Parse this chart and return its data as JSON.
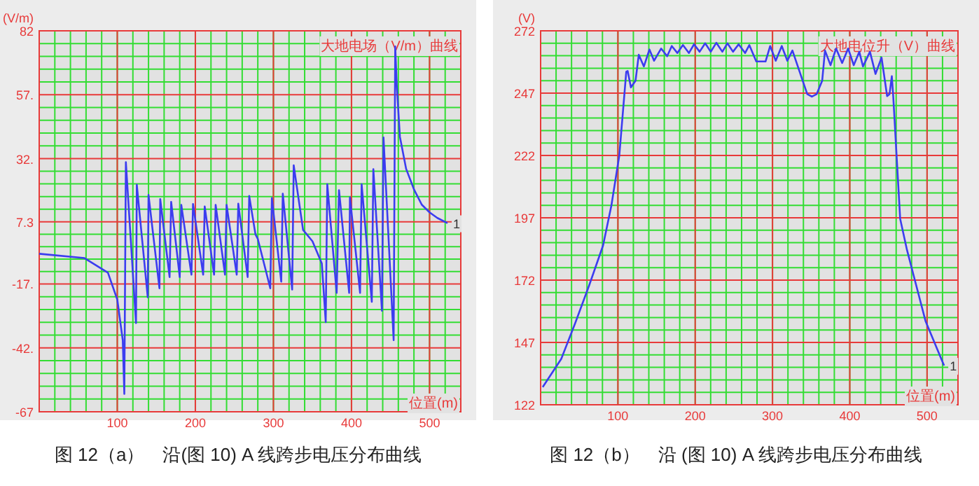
{
  "chart_data": [
    {
      "type": "line",
      "title": "大地电场（V/m）曲线",
      "xlabel": "位置(m)",
      "ylabel": "(V/m)",
      "xlim": [
        0,
        540
      ],
      "xticks": [
        100,
        200,
        300,
        400,
        500
      ],
      "ylim": [
        -67,
        82
      ],
      "yticks": [
        {
          "value": -67,
          "label": "-67"
        },
        {
          "value": -42,
          "label": "-42."
        },
        {
          "value": -17,
          "label": "-17."
        },
        7.3,
        {
          "value": 32,
          "label": "32."
        },
        {
          "value": 57,
          "label": "57."
        },
        82
      ],
      "grid": true,
      "annotations": [
        "图 12（a）　沿(图 10) A 线跨步电压分布曲线"
      ],
      "series": [
        {
          "name": "1",
          "color": "#3c3cf0",
          "x": [
            0,
            58,
            88,
            100,
            107,
            109,
            111,
            124,
            125,
            139,
            140,
            154,
            155,
            167,
            169,
            180,
            182,
            195,
            197,
            210,
            212,
            224,
            226,
            238,
            240,
            253,
            255,
            267,
            269,
            277,
            280,
            296,
            298,
            310,
            312,
            324,
            326,
            338,
            350,
            362,
            367,
            369,
            381,
            384,
            397,
            398,
            411,
            413,
            426,
            428,
            439,
            441,
            454,
            456,
            458,
            462,
            470,
            480,
            490,
            500,
            510,
            523
          ],
          "values": [
            -5.2,
            -6.9,
            -12.6,
            -23.1,
            -39,
            -60,
            30.6,
            -32.3,
            21.8,
            -22.2,
            17.8,
            -18.7,
            16.2,
            -14.3,
            15.1,
            -14.3,
            13.9,
            -13.4,
            14.3,
            -13.4,
            13.3,
            -13.4,
            13.9,
            -13.4,
            13.9,
            -13.4,
            14.4,
            -14.3,
            17.4,
            2.4,
            0.6,
            -18.7,
            16.6,
            -16.1,
            18.3,
            -19.2,
            29.4,
            4.1,
            -0.3,
            -9,
            -31.9,
            22,
            -20.5,
            19.7,
            -20.5,
            16.9,
            -20.5,
            22,
            -24,
            27.9,
            -27.5,
            40.3,
            -39,
            75.9,
            60.8,
            40.6,
            28,
            20,
            14,
            11,
            8.8,
            6.8
          ]
        }
      ]
    },
    {
      "type": "line",
      "title": "大地电位升（V）曲线",
      "xlabel": "位置(m)",
      "ylabel": "(V)",
      "xlim": [
        0,
        540
      ],
      "xticks": [
        100,
        200,
        300,
        400,
        500
      ],
      "ylim": [
        122,
        272
      ],
      "yticks": [
        122,
        147,
        172,
        197,
        222,
        247,
        272
      ],
      "grid": true,
      "annotations": [
        "图 12（b）　沿 (图 10) A 线跨步电压分布曲线"
      ],
      "series": [
        {
          "name": "1",
          "color": "#3c3cf0",
          "x": [
            2.7,
            26.7,
            44.7,
            62.8,
            80.8,
            91.6,
            101.8,
            110.8,
            112.6,
            116.8,
            122.8,
            127,
            133.6,
            140.8,
            146.8,
            155.9,
            163.7,
            169.7,
            176.9,
            184.1,
            191.9,
            198.5,
            205.7,
            212.9,
            220.1,
            227.3,
            235.1,
            241.7,
            248.9,
            256.2,
            264.6,
            270,
            279,
            291,
            297,
            304.2,
            312,
            319.2,
            325.8,
            339,
            345,
            351.1,
            357.1,
            364.3,
            367.9,
            375.1,
            382.3,
            390.1,
            397.9,
            405.1,
            412.3,
            417.1,
            426.1,
            433.3,
            441.1,
            448.3,
            451.4,
            454.4,
            456.2,
            465.2,
            474,
            483,
            498,
            522
          ],
          "values": [
            129.1,
            140.4,
            154.7,
            169.9,
            185.9,
            202,
            222,
            255.6,
            255.9,
            249.3,
            252,
            262.4,
            257.7,
            264.5,
            260,
            264.9,
            261.8,
            265.9,
            263.1,
            266.3,
            263.1,
            266.6,
            263.6,
            267,
            263.6,
            267.2,
            263.6,
            267,
            263.6,
            266.6,
            263.1,
            266.3,
            259.7,
            259.7,
            265.9,
            260,
            265.9,
            260,
            264.1,
            252,
            246.6,
            245.6,
            246.6,
            252,
            264.1,
            258.2,
            264.9,
            259.1,
            264.9,
            258.2,
            263.6,
            257.7,
            263.6,
            254.7,
            261.3,
            245.8,
            246.6,
            253.8,
            245.8,
            196.6,
            184.1,
            173.4,
            155.6,
            137.7
          ]
        }
      ]
    }
  ]
}
